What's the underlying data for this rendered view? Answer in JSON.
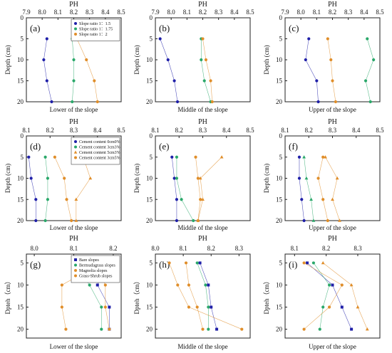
{
  "chart_data": [
    {
      "type": "line",
      "panel": "(a)",
      "caption": "Lower of the slope",
      "xlabel": "PH",
      "ylabel": "Depth (cm)",
      "xlim": [
        7.9,
        8.5
      ],
      "xticks": [
        7.9,
        8.0,
        8.1,
        8.2,
        8.3,
        8.4,
        8.5
      ],
      "ylim": [
        0,
        20
      ],
      "yticks": [
        0,
        5,
        10,
        15,
        20
      ],
      "legend": {
        "entries": [
          "Slope ratio 1：1.5",
          "Slope ratio 1：1.75",
          "Slope ratio 1：2"
        ],
        "placement": "top-right"
      },
      "series": [
        {
          "name": "Slope ratio 1：1.5",
          "color": "#1f1fa8",
          "marker": "circle",
          "points": [
            [
              8.03,
              5
            ],
            [
              8.01,
              10
            ],
            [
              8.03,
              15
            ],
            [
              8.06,
              20
            ]
          ]
        },
        {
          "name": "Slope ratio 1：1.75",
          "color": "#2aa86a",
          "marker": "circle",
          "points": [
            [
              8.19,
              5
            ],
            [
              8.2,
              10
            ],
            [
              8.2,
              15
            ],
            [
              8.19,
              20
            ]
          ]
        },
        {
          "name": "Slope ratio 1：2",
          "color": "#e08e2a",
          "marker": "circle",
          "points": [
            [
              8.22,
              5
            ],
            [
              8.28,
              10
            ],
            [
              8.33,
              15
            ],
            [
              8.35,
              20
            ]
          ]
        }
      ]
    },
    {
      "type": "line",
      "panel": "(b)",
      "caption": "Middle of the slope",
      "xlabel": "PH",
      "ylabel": "Depth (cm)",
      "xlim": [
        7.9,
        8.5
      ],
      "xticks": [
        7.9,
        8.0,
        8.1,
        8.2,
        8.3,
        8.4,
        8.5
      ],
      "ylim": [
        0,
        20
      ],
      "yticks": [
        0,
        5,
        10,
        15,
        20
      ],
      "series": [
        {
          "color": "#1f1fa8",
          "marker": "circle",
          "points": [
            [
              7.93,
              5
            ],
            [
              7.98,
              10
            ],
            [
              8.02,
              15
            ],
            [
              8.04,
              20
            ]
          ]
        },
        {
          "color": "#2aa86a",
          "marker": "circle",
          "points": [
            [
              8.19,
              5
            ],
            [
              8.19,
              10
            ],
            [
              8.21,
              15
            ],
            [
              8.25,
              20
            ]
          ]
        },
        {
          "color": "#e08e2a",
          "marker": "circle",
          "points": [
            [
              8.2,
              5
            ],
            [
              8.22,
              10
            ],
            [
              8.25,
              15
            ],
            [
              8.26,
              20
            ]
          ]
        }
      ]
    },
    {
      "type": "line",
      "panel": "(c)",
      "caption": "Upper of the slope",
      "xlabel": "PH",
      "ylabel": "Depth (cm)",
      "xlim": [
        7.9,
        8.5
      ],
      "xticks": [
        7.9,
        8.0,
        8.1,
        8.2,
        8.3,
        8.4,
        8.5
      ],
      "ylim": [
        0,
        20
      ],
      "yticks": [
        0,
        5,
        10,
        15,
        20
      ],
      "series": [
        {
          "color": "#1f1fa8",
          "marker": "circle",
          "points": [
            [
              8.05,
              5
            ],
            [
              8.03,
              10
            ],
            [
              8.1,
              15
            ],
            [
              8.11,
              20
            ]
          ]
        },
        {
          "color": "#2aa86a",
          "marker": "circle",
          "points": [
            [
              8.42,
              5
            ],
            [
              8.46,
              10
            ],
            [
              8.41,
              15
            ],
            [
              8.44,
              20
            ]
          ]
        },
        {
          "color": "#e08e2a",
          "marker": "circle",
          "points": [
            [
              8.17,
              5
            ],
            [
              8.19,
              10
            ],
            [
              8.2,
              15
            ],
            [
              8.22,
              20
            ]
          ]
        }
      ]
    },
    {
      "type": "line",
      "panel": "(d)",
      "caption": "Lower of the slope",
      "xlabel": "PH",
      "ylabel": "Depth (cm)",
      "xlim": [
        8.1,
        8.5
      ],
      "xticks": [
        8.1,
        8.2,
        8.3,
        8.4,
        8.5
      ],
      "ylim": [
        0,
        20
      ],
      "yticks": [
        0,
        5,
        10,
        15,
        20
      ],
      "legend": {
        "entries": [
          "Cement content 0cm0%",
          "Cement content 3cm3%",
          "Cement content 5cm3%",
          "Cement content 3cm5%"
        ],
        "placement": "top-right"
      },
      "series": [
        {
          "name": "Cement content 0cm0%",
          "color": "#1f1fa8",
          "marker": "circle",
          "points": [
            [
              8.11,
              5
            ],
            [
              8.12,
              10
            ],
            [
              8.14,
              15
            ],
            [
              8.14,
              20
            ]
          ]
        },
        {
          "name": "Cement content 3cm3%",
          "color": "#2aa86a",
          "marker": "circle",
          "points": [
            [
              8.18,
              5
            ],
            [
              8.19,
              10
            ],
            [
              8.19,
              15
            ],
            [
              8.18,
              20
            ]
          ]
        },
        {
          "name": "Cement content 5cm3%",
          "color": "#e08e2a",
          "marker": "triangle",
          "points": [
            [
              8.34,
              5
            ],
            [
              8.37,
              10
            ],
            [
              8.31,
              15
            ],
            [
              8.31,
              20
            ]
          ]
        },
        {
          "name": "Cement content 3cm5%",
          "color": "#e08e2a",
          "marker": "circle",
          "points": [
            [
              8.22,
              5
            ],
            [
              8.26,
              10
            ],
            [
              8.27,
              15
            ],
            [
              8.29,
              20
            ]
          ]
        }
      ]
    },
    {
      "type": "line",
      "panel": "(e)",
      "caption": "Middle of the slope",
      "xlabel": "PH",
      "ylabel": "Depth (cm)",
      "xlim": [
        8.1,
        8.5
      ],
      "xticks": [
        8.1,
        8.2,
        8.3,
        8.4,
        8.5
      ],
      "ylim": [
        0,
        20
      ],
      "yticks": [
        0,
        5,
        10,
        15,
        20
      ],
      "series": [
        {
          "color": "#1f1fa8",
          "marker": "circle",
          "points": [
            [
              8.17,
              5
            ],
            [
              8.18,
              10
            ],
            [
              8.19,
              15
            ],
            [
              8.19,
              20
            ]
          ]
        },
        {
          "color": "#2aa86a",
          "marker": "circle",
          "points": [
            [
              8.19,
              5
            ],
            [
              8.19,
              10
            ],
            [
              8.21,
              15
            ],
            [
              8.26,
              20
            ]
          ]
        },
        {
          "color": "#e08e2a",
          "marker": "triangle",
          "points": [
            [
              8.38,
              5
            ],
            [
              8.29,
              10
            ],
            [
              8.3,
              15
            ],
            [
              8.28,
              20
            ]
          ]
        },
        {
          "color": "#e08e2a",
          "marker": "circle",
          "points": [
            [
              8.27,
              5
            ],
            [
              8.28,
              10
            ],
            [
              8.29,
              15
            ],
            [
              8.28,
              20
            ]
          ]
        }
      ]
    },
    {
      "type": "line",
      "panel": "(f)",
      "caption": "Upper of the slope",
      "xlabel": "PH",
      "ylabel": "Depth (cm)",
      "xlim": [
        8.1,
        8.5
      ],
      "xticks": [
        8.1,
        8.2,
        8.3,
        8.4,
        8.5
      ],
      "ylim": [
        0,
        20
      ],
      "yticks": [
        0,
        5,
        10,
        15,
        20
      ],
      "series": [
        {
          "color": "#1f1fa8",
          "marker": "circle",
          "points": [
            [
              8.16,
              5
            ],
            [
              8.16,
              10
            ],
            [
              8.17,
              15
            ],
            [
              8.18,
              20
            ]
          ]
        },
        {
          "color": "#2aa86a",
          "marker": "triangle",
          "points": [
            [
              8.18,
              5
            ],
            [
              8.19,
              10
            ],
            [
              8.21,
              15
            ],
            [
              8.22,
              20
            ]
          ]
        },
        {
          "color": "#e08e2a",
          "marker": "triangle",
          "points": [
            [
              8.27,
              5
            ],
            [
              8.32,
              10
            ],
            [
              8.3,
              15
            ],
            [
              8.33,
              20
            ]
          ]
        },
        {
          "color": "#e08e2a",
          "marker": "circle",
          "points": [
            [
              8.26,
              5
            ],
            [
              8.24,
              10
            ],
            [
              8.26,
              15
            ],
            [
              8.28,
              20
            ]
          ]
        }
      ]
    },
    {
      "type": "line",
      "panel": "(g)",
      "caption": "Lower of the slope",
      "xlabel": "PH",
      "ylabel": "Dpteh（cm）",
      "xlim": [
        7.98,
        8.22
      ],
      "xticks": [
        8.0,
        8.1,
        8.2
      ],
      "ylim": [
        3,
        22
      ],
      "yticks": [
        5,
        10,
        15,
        20
      ],
      "legend": {
        "entries": [
          "Bare slopes",
          "Bermudagrass slopes",
          "Magnolia slopes",
          "Grass-Shrub slopes"
        ],
        "placement": "top-right"
      },
      "series": [
        {
          "name": "Bare slopes",
          "color": "#1f1fa8",
          "marker": "square",
          "points": [
            [
              8.18,
              5
            ],
            [
              8.16,
              10
            ],
            [
              8.19,
              15
            ],
            [
              8.19,
              20
            ]
          ]
        },
        {
          "name": "Bermudagrass slopes",
          "color": "#2aa86a",
          "marker": "circle",
          "points": [
            [
              8.1,
              5
            ],
            [
              8.14,
              10
            ],
            [
              8.17,
              15
            ],
            [
              8.17,
              20
            ]
          ]
        },
        {
          "name": "Magnolia slopes",
          "color": "#e08e2a",
          "marker": "circle",
          "points": [
            [
              8.17,
              5
            ],
            [
              8.07,
              10
            ],
            [
              8.07,
              15
            ],
            [
              8.08,
              20
            ]
          ]
        },
        {
          "name": "Grass-Shrub slopes",
          "color": "#e08e2a",
          "marker": "circle",
          "points": [
            [
              8.15,
              5
            ],
            [
              8.18,
              10
            ],
            [
              8.18,
              15
            ],
            [
              8.19,
              20
            ]
          ]
        }
      ]
    },
    {
      "type": "line",
      "panel": "(h)",
      "caption": "Middle of the slope",
      "xlabel": "PH",
      "ylabel": "Dpteh（cm）",
      "xlim": [
        8.0,
        8.34
      ],
      "xticks": [
        8.0,
        8.1,
        8.2,
        8.3
      ],
      "ylim": [
        3,
        22
      ],
      "yticks": [
        5,
        10,
        15,
        20
      ],
      "series": [
        {
          "color": "#1f1fa8",
          "marker": "square",
          "points": [
            [
              8.16,
              5
            ],
            [
              8.19,
              10
            ],
            [
              8.2,
              15
            ],
            [
              8.22,
              20
            ]
          ]
        },
        {
          "color": "#2aa86a",
          "marker": "circle",
          "points": [
            [
              8.15,
              5
            ],
            [
              8.18,
              10
            ],
            [
              8.19,
              15
            ],
            [
              8.19,
              20
            ]
          ]
        },
        {
          "color": "#e08e2a",
          "marker": "circle",
          "points": [
            [
              8.05,
              5
            ],
            [
              8.08,
              10
            ],
            [
              8.12,
              15
            ],
            [
              8.31,
              20
            ]
          ]
        },
        {
          "color": "#e08e2a",
          "marker": "circle",
          "points": [
            [
              8.11,
              5
            ],
            [
              8.12,
              10
            ],
            [
              8.15,
              15
            ],
            [
              8.17,
              20
            ]
          ]
        }
      ]
    },
    {
      "type": "line",
      "panel": "(i)",
      "caption": "Upper of the slope",
      "xlabel": "PH",
      "ylabel": "Dpteh（cm）",
      "xlim": [
        8.07,
        8.37
      ],
      "xticks": [
        8.1,
        8.2,
        8.3
      ],
      "ylim": [
        3,
        22
      ],
      "yticks": [
        5,
        10,
        15,
        20
      ],
      "series": [
        {
          "color": "#1f1fa8",
          "marker": "square",
          "points": [
            [
              8.14,
              5
            ],
            [
              8.22,
              10
            ],
            [
              8.25,
              15
            ],
            [
              8.28,
              20
            ]
          ]
        },
        {
          "color": "#2aa86a",
          "marker": "circle",
          "points": [
            [
              8.16,
              5
            ],
            [
              8.21,
              10
            ],
            [
              8.19,
              15
            ],
            [
              8.18,
              20
            ]
          ]
        },
        {
          "color": "#e08e2a",
          "marker": "circle",
          "points": [
            [
              8.13,
              5
            ],
            [
              8.25,
              10
            ],
            [
              8.21,
              15
            ],
            [
              8.13,
              20
            ]
          ]
        },
        {
          "color": "#e08e2a",
          "marker": "triangle",
          "points": [
            [
              8.19,
              5
            ],
            [
              8.28,
              10
            ],
            [
              8.3,
              15
            ],
            [
              8.33,
              20
            ]
          ]
        }
      ]
    }
  ]
}
